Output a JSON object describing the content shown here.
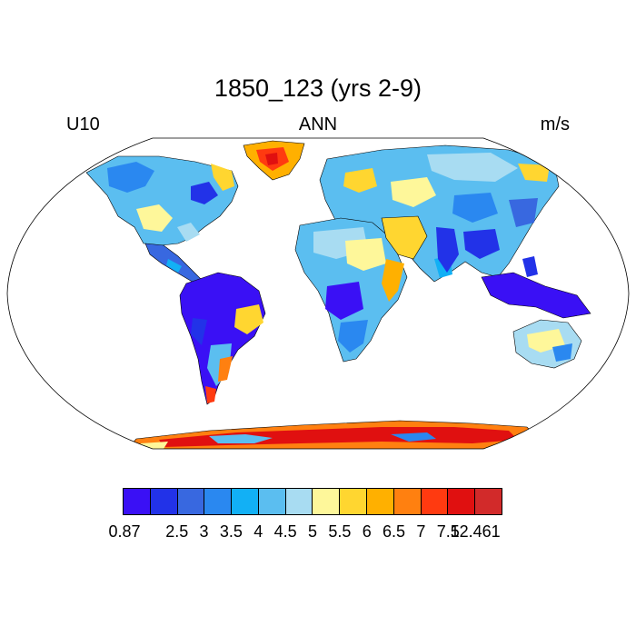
{
  "title": "1850_123 (yrs 2-9)",
  "left_label": "U10",
  "center_label": "ANN",
  "right_label": "m/s",
  "map": {
    "projection": "robinson",
    "ocean_color": "#ffffff",
    "variable": "U10"
  },
  "colorbar": {
    "colors": [
      "#3a10f5",
      "#2232e8",
      "#3868e0",
      "#2a88f0",
      "#12b0f5",
      "#5bbef0",
      "#a8dcf2",
      "#fef79a",
      "#ffd630",
      "#ffb000",
      "#ff8010",
      "#ff3a10",
      "#e01010",
      "#d22a2a"
    ],
    "labels": [
      "0.87",
      "2.5",
      "3",
      "3.5",
      "4",
      "4.5",
      "5",
      "5.5",
      "6",
      "6.5",
      "7",
      "7.5",
      "12.461"
    ]
  }
}
